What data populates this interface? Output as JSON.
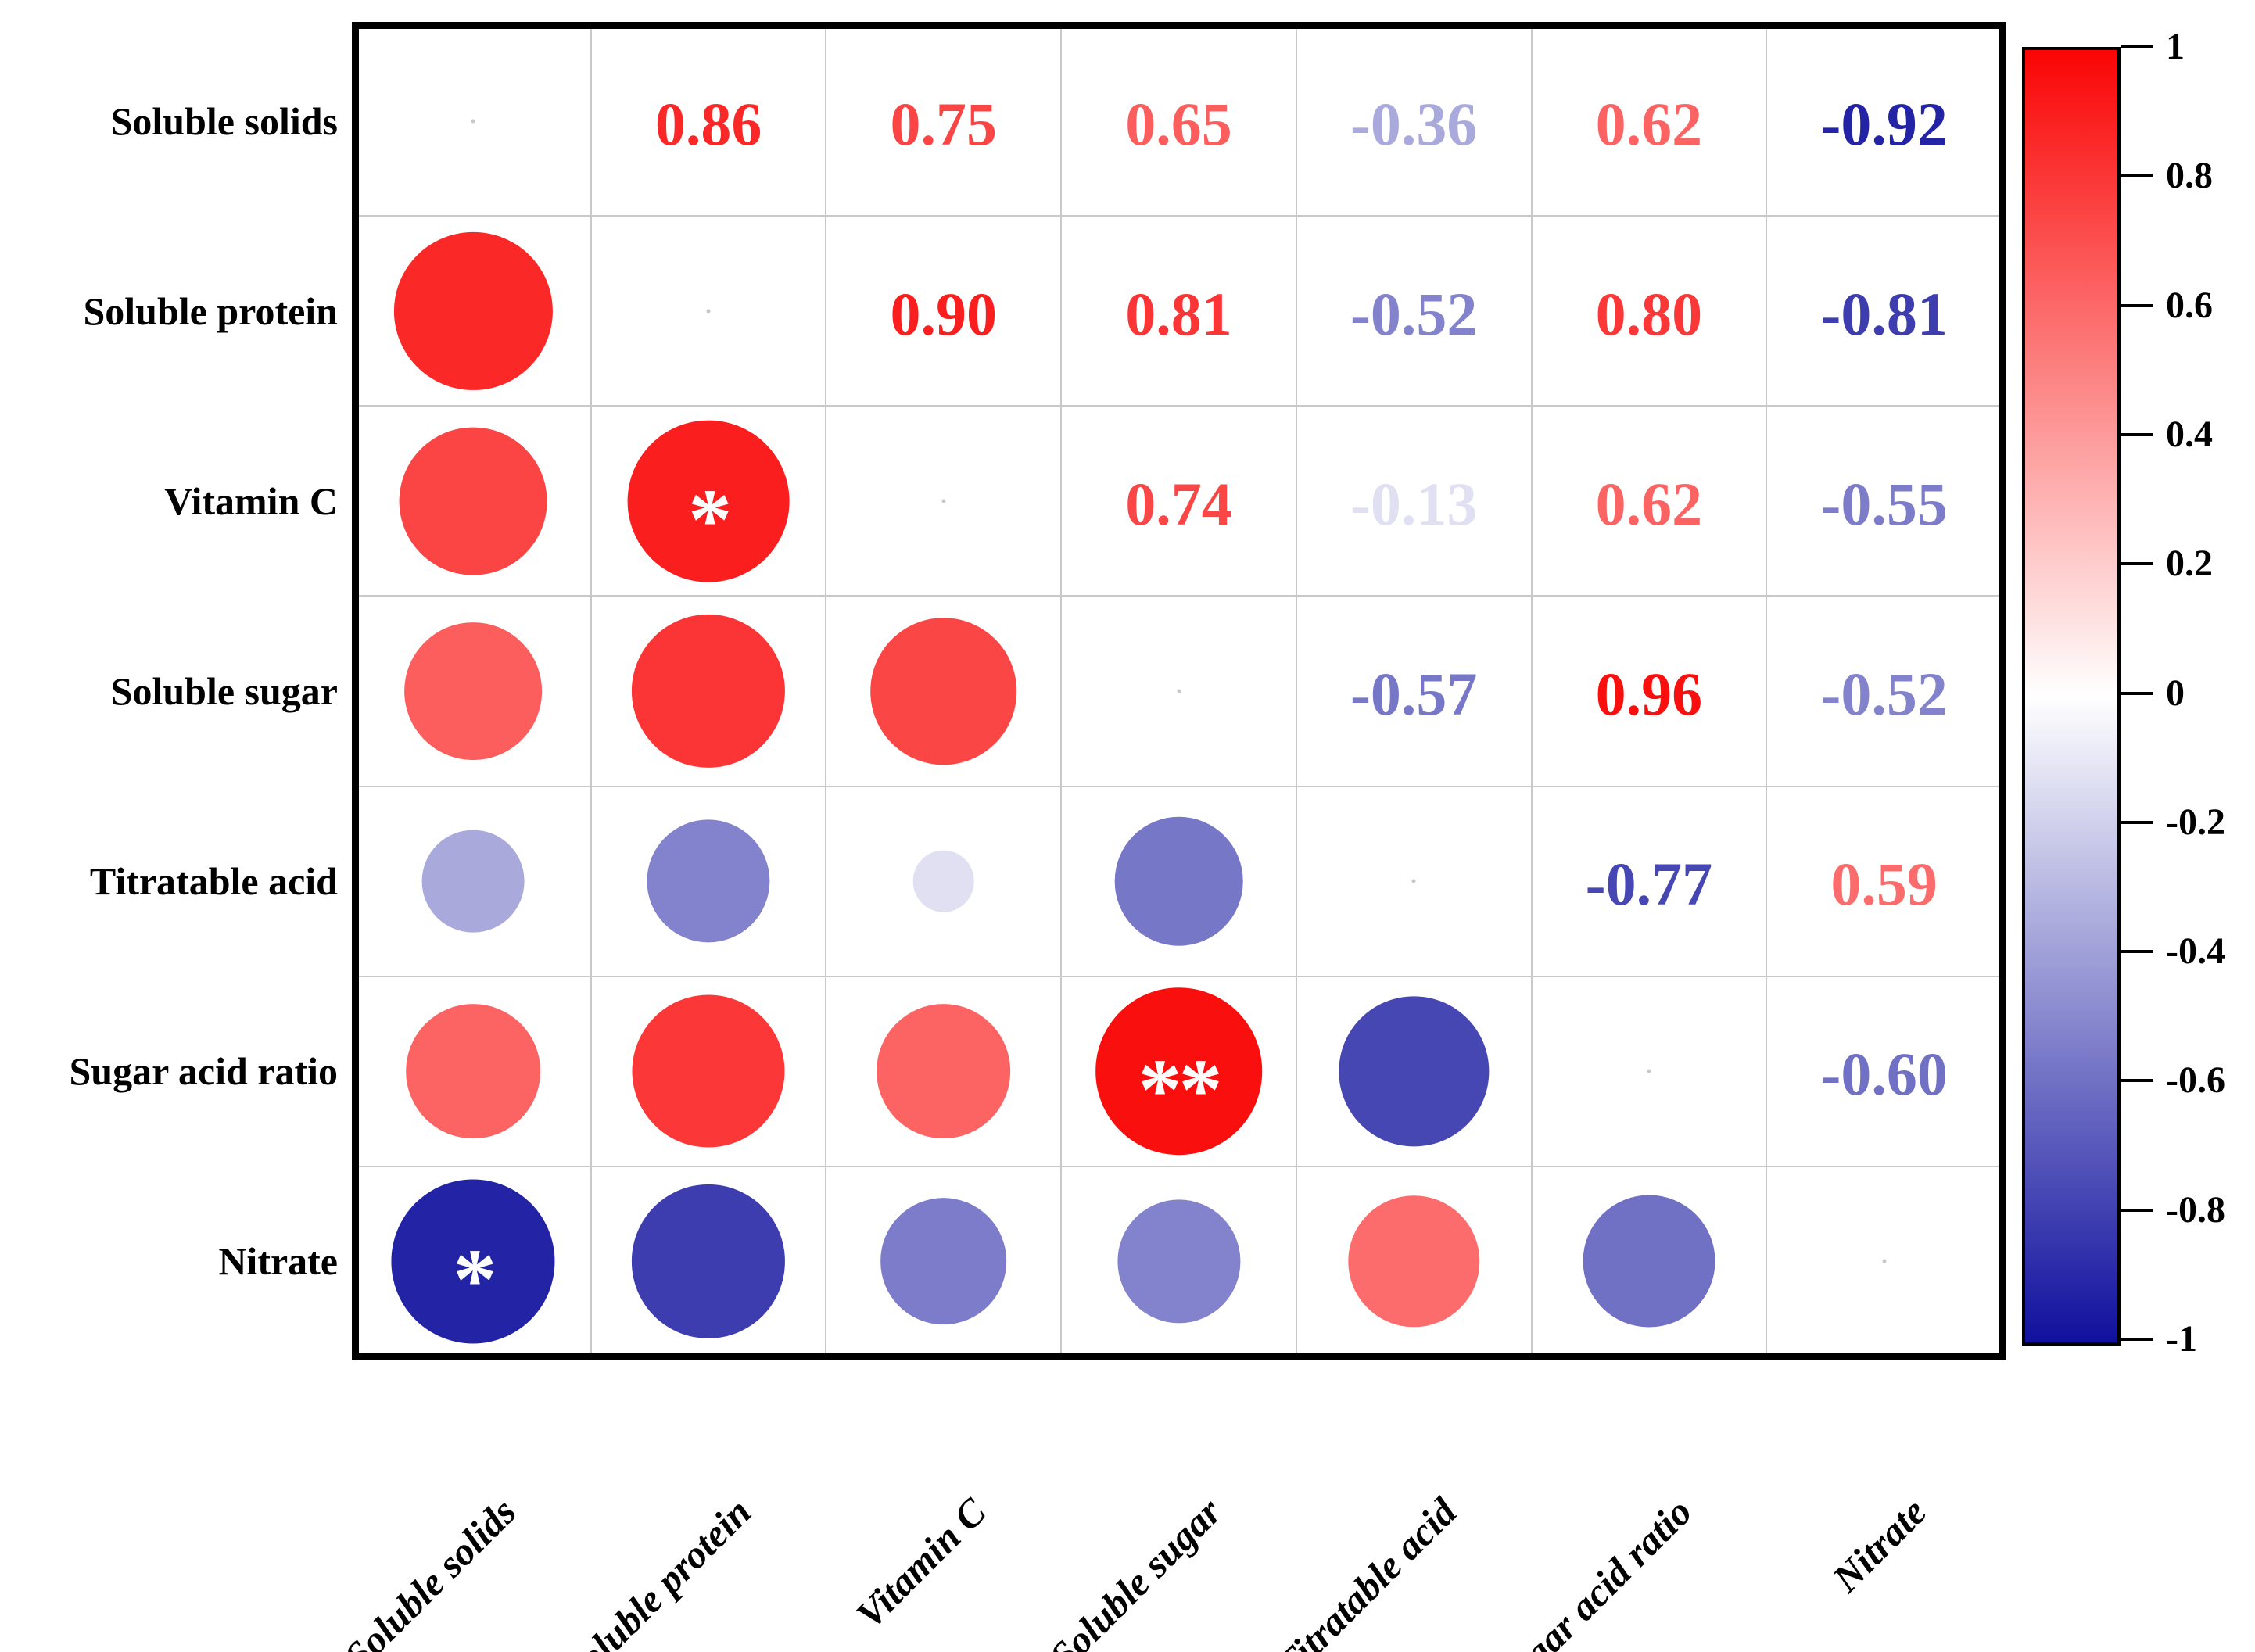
{
  "chart_data": {
    "type": "heatmap",
    "subtype": "correlation-matrix",
    "variables": [
      "Soluble solids",
      "Soluble protein",
      "Vitamin C",
      "Soluble sugar",
      "Titratable acid",
      "Sugar acid ratio",
      "Nitrate"
    ],
    "pairs": [
      {
        "a": 0,
        "b": 1,
        "r": 0.86,
        "label": "0.86",
        "sig": ""
      },
      {
        "a": 0,
        "b": 2,
        "r": 0.75,
        "label": "0.75",
        "sig": ""
      },
      {
        "a": 0,
        "b": 3,
        "r": 0.65,
        "label": "0.65",
        "sig": ""
      },
      {
        "a": 0,
        "b": 4,
        "r": -0.36,
        "label": "-0.36",
        "sig": ""
      },
      {
        "a": 0,
        "b": 5,
        "r": 0.62,
        "label": "0.62",
        "sig": ""
      },
      {
        "a": 0,
        "b": 6,
        "r": -0.92,
        "label": "-0.92",
        "sig": "*"
      },
      {
        "a": 1,
        "b": 2,
        "r": 0.9,
        "label": "0.90",
        "sig": "*"
      },
      {
        "a": 1,
        "b": 3,
        "r": 0.81,
        "label": "0.81",
        "sig": ""
      },
      {
        "a": 1,
        "b": 4,
        "r": -0.52,
        "label": "-0.52",
        "sig": ""
      },
      {
        "a": 1,
        "b": 5,
        "r": 0.8,
        "label": "0.80",
        "sig": ""
      },
      {
        "a": 1,
        "b": 6,
        "r": -0.81,
        "label": "-0.81",
        "sig": ""
      },
      {
        "a": 2,
        "b": 3,
        "r": 0.74,
        "label": "0.74",
        "sig": ""
      },
      {
        "a": 2,
        "b": 4,
        "r": -0.13,
        "label": "-0.13",
        "sig": ""
      },
      {
        "a": 2,
        "b": 5,
        "r": 0.62,
        "label": "0.62",
        "sig": ""
      },
      {
        "a": 2,
        "b": 6,
        "r": -0.55,
        "label": "-0.55",
        "sig": ""
      },
      {
        "a": 3,
        "b": 4,
        "r": -0.57,
        "label": "-0.57",
        "sig": ""
      },
      {
        "a": 3,
        "b": 5,
        "r": 0.96,
        "label": "0.96",
        "sig": "**"
      },
      {
        "a": 3,
        "b": 6,
        "r": -0.52,
        "label": "-0.52",
        "sig": ""
      },
      {
        "a": 4,
        "b": 5,
        "r": -0.77,
        "label": "-0.77",
        "sig": ""
      },
      {
        "a": 4,
        "b": 6,
        "r": 0.59,
        "label": "0.59",
        "sig": ""
      },
      {
        "a": 5,
        "b": 6,
        "r": -0.6,
        "label": "-0.60",
        "sig": ""
      }
    ],
    "upper_triangle": "numbers",
    "lower_triangle": "circles",
    "diagonal_shown": false,
    "legend_position": "right",
    "colorbar": {
      "min": -1,
      "max": 1,
      "ticks": [
        "1",
        "0.8",
        "0.6",
        "0.4",
        "0.2",
        "0",
        "-0.2",
        "-0.4",
        "-0.6",
        "-0.8",
        "-1"
      ]
    },
    "colors": {
      "positive_end": "#FA0505",
      "negative_end": "#10109E",
      "zero": "#FFFFFF",
      "grid": "#C9C9C9",
      "border": "#000000",
      "sig_mark": "#FFFFFF"
    }
  }
}
